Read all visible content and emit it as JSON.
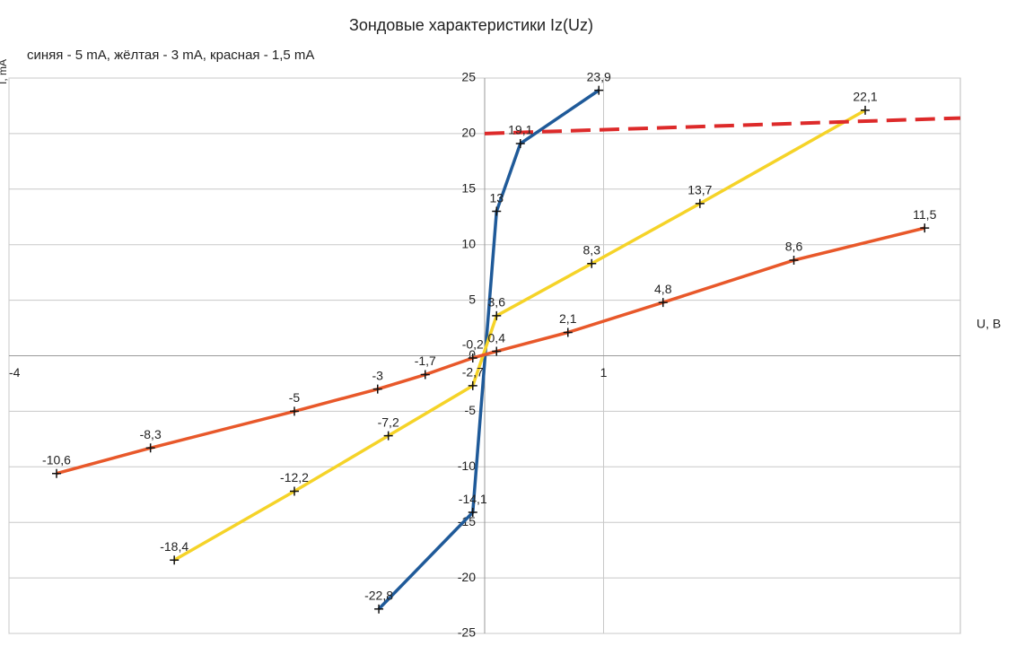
{
  "chart_data": {
    "type": "line",
    "title": "Зондовые характеристики Iz(Uz)",
    "subtitle": "синяя - 5 mA, жёлтая - 3 mA, красная - 1,5 mA",
    "x_label": "U, В",
    "y_label": "I, mA",
    "xlim": [
      -4,
      4
    ],
    "xticks": [
      -4,
      1
    ],
    "ylim": [
      -25,
      25
    ],
    "yticks": [
      -25,
      -20,
      -15,
      -10,
      -5,
      0,
      5,
      10,
      15,
      20,
      25
    ],
    "grid": true,
    "series": [
      {
        "color": "#1f5a99",
        "x": [
          -0.89,
          -0.1,
          0.1,
          0.3,
          0.96
        ],
        "values": [
          -22.8,
          -14.1,
          13,
          19.1,
          23.9
        ],
        "value_labels": [
          "-22,8",
          "-14,1",
          "13",
          "19,1",
          "23,9"
        ]
      },
      {
        "color": "#f5d328",
        "x": [
          -2.61,
          -1.6,
          -0.81,
          -0.1,
          0.1,
          0.9,
          1.81,
          3.2
        ],
        "values": [
          -18.4,
          -12.2,
          -7.2,
          -2.7,
          3.6,
          8.3,
          13.7,
          22.1
        ],
        "value_labels": [
          "-18,4",
          "-12,2",
          "-7,2",
          "-2,7",
          "3,6",
          "8,3",
          "13,7",
          "22,1"
        ]
      },
      {
        "color": "#e8582a",
        "x": [
          -3.6,
          -2.81,
          -1.6,
          -0.9,
          -0.5,
          -0.1,
          0.1,
          0.7,
          1.5,
          2.6,
          3.7
        ],
        "values": [
          -10.6,
          -8.3,
          -5,
          -3,
          -1.7,
          -0.2,
          0.4,
          2.1,
          4.8,
          8.6,
          11.5
        ],
        "value_labels": [
          "-10,6",
          "-8,3",
          "-5",
          "-3",
          "-1,7",
          "-0,2",
          "0,4",
          "2,1",
          "4,8",
          "8,6",
          "11,5"
        ]
      },
      {
        "color": "#dd2a2a",
        "dashed": true,
        "x": [
          0,
          4
        ],
        "values": [
          20,
          21.4
        ]
      }
    ]
  }
}
